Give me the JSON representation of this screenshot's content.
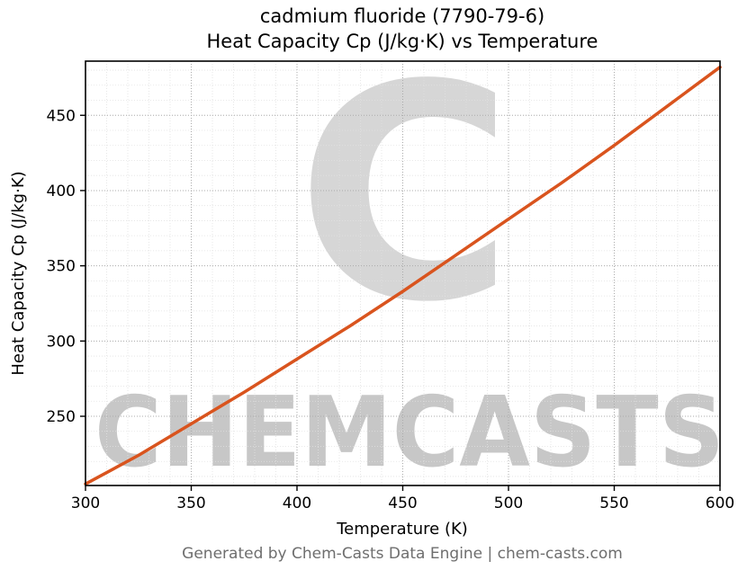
{
  "title": {
    "line1": "cadmium fluoride (7790-79-6)",
    "line2": "Heat Capacity Cp (J/kg·K) vs Temperature"
  },
  "footer": "Generated by Chem-Casts Data Engine | chem-casts.com",
  "watermark": {
    "logo_glyph": "C",
    "text": "CHEMCASTS",
    "color": "#e25839"
  },
  "chart_data": {
    "type": "line",
    "title": "cadmium fluoride (7790-79-6) Heat Capacity Cp (J/kg·K) vs Temperature",
    "xlabel": "Temperature (K)",
    "ylabel": "Heat Capacity Cp (J/kg·K)",
    "xlim": [
      300,
      600
    ],
    "ylim": [
      204,
      486
    ],
    "xticks": [
      300,
      350,
      400,
      450,
      500,
      550,
      600
    ],
    "yticks": [
      250,
      300,
      350,
      400,
      450
    ],
    "minor_step_x": 10,
    "minor_step_y": 10,
    "grid": true,
    "legend": "none",
    "series": [
      {
        "name": "Heat Capacity Cp",
        "color": "#d9541e",
        "x": [
          300,
          325,
          350,
          375,
          400,
          425,
          450,
          475,
          500,
          525,
          550,
          575,
          600
        ],
        "values": [
          205,
          224,
          245,
          266,
          288,
          310,
          333,
          357,
          381,
          405,
          430,
          456,
          482
        ]
      }
    ]
  }
}
